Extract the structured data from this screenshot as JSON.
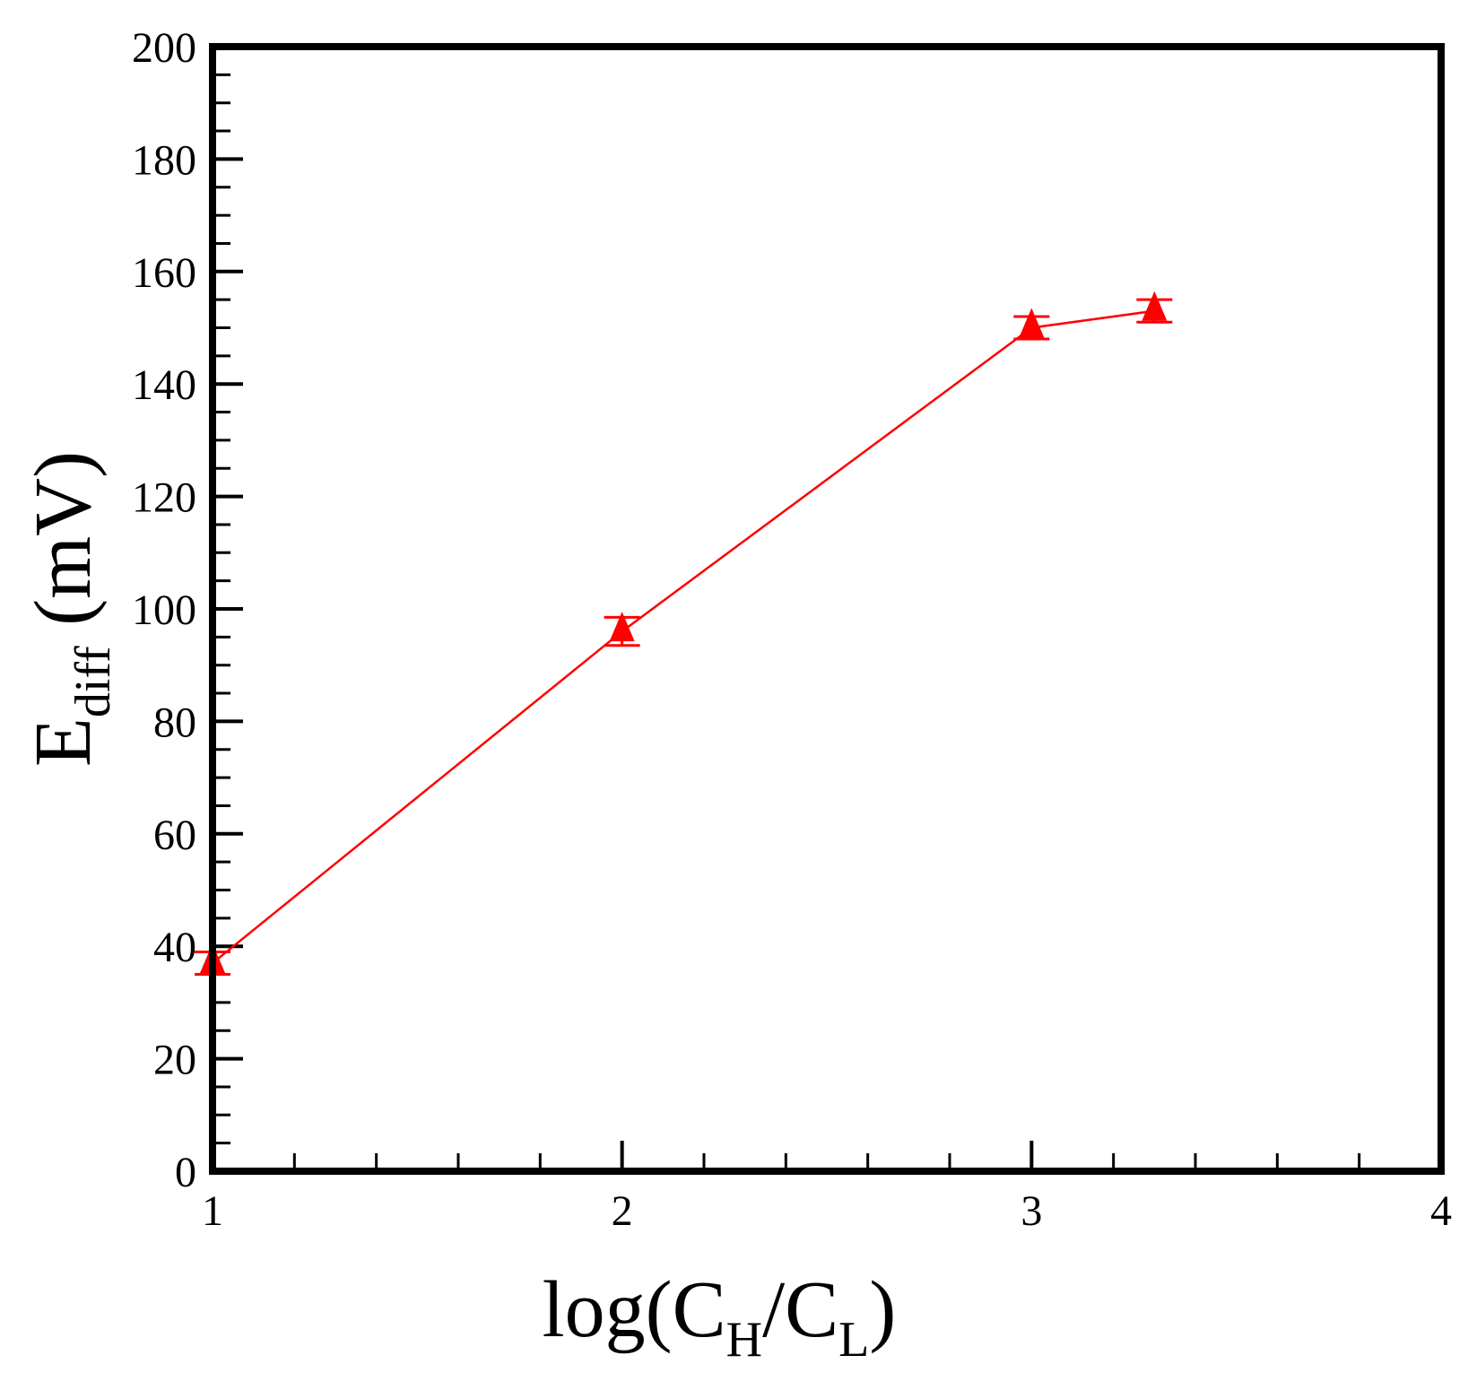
{
  "chart_data": {
    "type": "line",
    "title": "",
    "xlabel": {
      "main": "log(C",
      "sub1": "H",
      "mid": "/C",
      "sub2": "L",
      "end": ")"
    },
    "ylabel": {
      "main": "E",
      "sub": "diff",
      "end": " (mV)"
    },
    "xlim": [
      1,
      4
    ],
    "ylim": [
      0,
      200
    ],
    "xticks": [
      "1",
      "2",
      "3",
      "4"
    ],
    "yticks": [
      "0",
      "20",
      "40",
      "60",
      "80",
      "100",
      "120",
      "140",
      "160",
      "180",
      "200"
    ],
    "grid": false,
    "legend": "none",
    "series": [
      {
        "color": "#ff0000",
        "marker": "triangle",
        "x": [
          1,
          2,
          3,
          3.3
        ],
        "y": [
          37,
          96,
          150,
          153
        ],
        "err": [
          2,
          2.5,
          2,
          2
        ]
      }
    ]
  }
}
